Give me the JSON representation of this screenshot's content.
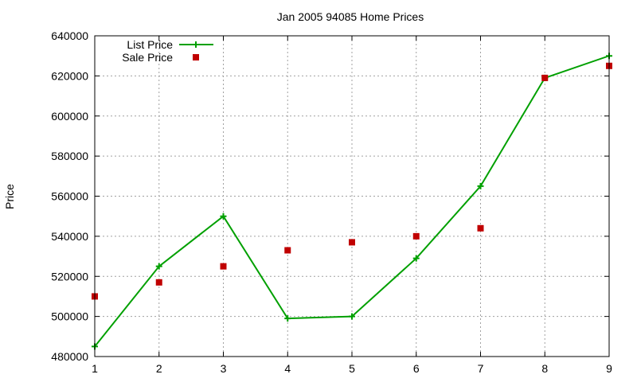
{
  "chart_data": {
    "type": "line",
    "title": "Jan 2005 94085 Home Prices",
    "xlabel": "",
    "ylabel": "Price",
    "x": [
      1,
      2,
      3,
      4,
      5,
      6,
      7,
      8,
      9
    ],
    "xlim": [
      1,
      9
    ],
    "ylim": [
      480000,
      640000
    ],
    "x_ticks": [
      "1",
      "2",
      "3",
      "4",
      "5",
      "6",
      "7",
      "8",
      "9"
    ],
    "y_ticks": [
      "480000",
      "500000",
      "520000",
      "540000",
      "560000",
      "580000",
      "600000",
      "620000",
      "640000"
    ],
    "grid": true,
    "legend_position": "top-left",
    "series": [
      {
        "name": "List Price",
        "style": "linespoints",
        "color": "#00a000",
        "values": [
          485000,
          525000,
          550000,
          499000,
          500000,
          529000,
          565000,
          619000,
          630000
        ]
      },
      {
        "name": "Sale Price",
        "style": "points",
        "color": "#c00000",
        "values": [
          510000,
          517000,
          525000,
          533000,
          537000,
          540000,
          544000,
          619000,
          625000
        ]
      }
    ]
  }
}
